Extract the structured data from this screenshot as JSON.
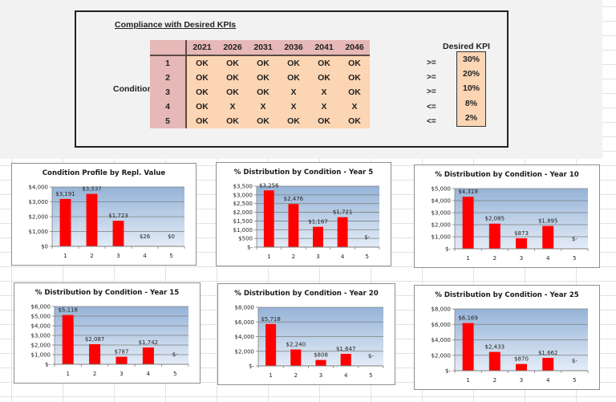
{
  "kpi_panel": {
    "title": "Compliance with Desired KPIs",
    "row_header": "Condition",
    "years": [
      "2021",
      "2026",
      "2031",
      "2036",
      "2041",
      "2046"
    ],
    "rows": [
      {
        "condition": "1",
        "values": [
          "OK",
          "OK",
          "OK",
          "OK",
          "OK",
          "OK"
        ]
      },
      {
        "condition": "2",
        "values": [
          "OK",
          "OK",
          "OK",
          "OK",
          "OK",
          "OK"
        ]
      },
      {
        "condition": "3",
        "values": [
          "OK",
          "OK",
          "OK",
          "X",
          "X",
          "OK"
        ]
      },
      {
        "condition": "4",
        "values": [
          "OK",
          "X",
          "X",
          "X",
          "X",
          "X"
        ]
      },
      {
        "condition": "5",
        "values": [
          "OK",
          "OK",
          "OK",
          "OK",
          "OK",
          "OK"
        ]
      }
    ],
    "desired_kpi": {
      "title": "Desired KPI",
      "items": [
        {
          "operator": ">=",
          "value": "30%"
        },
        {
          "operator": ">=",
          "value": "20%"
        },
        {
          "operator": ">=",
          "value": "10%"
        },
        {
          "operator": "<=",
          "value": "8%"
        },
        {
          "operator": "<=",
          "value": "2%"
        }
      ]
    },
    "colors": {
      "header_fill": "#e6b8b7",
      "cell_fill": "#fcd5b4"
    }
  },
  "chart_data": [
    {
      "type": "bar",
      "title": "Condition Profile by Repl. Value",
      "categories": [
        "1",
        "2",
        "3",
        "4",
        "5"
      ],
      "values": [
        3191,
        3537,
        1723,
        26,
        0
      ],
      "data_labels": [
        "$3,191",
        "$3,537",
        "$1,723",
        "$26",
        "$0"
      ],
      "ylim": [
        0,
        4000
      ],
      "yticks": [
        0,
        1000,
        2000,
        3000,
        4000
      ],
      "ytick_labels": [
        "$0",
        "$1,000",
        "$2,000",
        "$3,000",
        "$4,000"
      ],
      "xlabel": "",
      "ylabel": "",
      "grid": true,
      "legend": "none",
      "bar_color": "#ff0000"
    },
    {
      "type": "bar",
      "title": "% Distribution by Condition - Year 5",
      "categories": [
        "1",
        "2",
        "3",
        "4",
        "5"
      ],
      "values": [
        3256,
        2476,
        1167,
        1721,
        0
      ],
      "data_labels": [
        "$3,256",
        "$2,476",
        "$1,167",
        "$1,721",
        "$-"
      ],
      "ylim": [
        0,
        3500
      ],
      "yticks": [
        0,
        500,
        1000,
        1500,
        2000,
        2500,
        3000,
        3500
      ],
      "ytick_labels": [
        "$-",
        "$500",
        "$1,000",
        "$1,500",
        "$2,000",
        "$2,500",
        "$3,000",
        "$3,500"
      ],
      "xlabel": "",
      "ylabel": "",
      "grid": true,
      "legend": "none",
      "bar_color": "#ff0000"
    },
    {
      "type": "bar",
      "title": "% Distribution by Condition - Year 10",
      "categories": [
        "1",
        "2",
        "3",
        "4",
        "5"
      ],
      "values": [
        4319,
        2085,
        873,
        1895,
        0
      ],
      "data_labels": [
        "$4,319",
        "$2,085",
        "$873",
        "$1,895",
        "$-"
      ],
      "ylim": [
        0,
        5000
      ],
      "yticks": [
        0,
        1000,
        2000,
        3000,
        4000,
        5000
      ],
      "ytick_labels": [
        "$-",
        "$1,000",
        "$2,000",
        "$3,000",
        "$4,000",
        "$5,000"
      ],
      "xlabel": "",
      "ylabel": "",
      "grid": true,
      "legend": "none",
      "bar_color": "#ff0000"
    },
    {
      "type": "bar",
      "title": "% Distribution by Condition - Year 15",
      "categories": [
        "1",
        "2",
        "3",
        "4",
        "5"
      ],
      "values": [
        5118,
        2087,
        787,
        1742,
        0
      ],
      "data_labels": [
        "$5,118",
        "$2,087",
        "$787",
        "$1,742",
        "$-"
      ],
      "ylim": [
        0,
        6000
      ],
      "yticks": [
        0,
        1000,
        2000,
        3000,
        4000,
        5000,
        6000
      ],
      "ytick_labels": [
        "$-",
        "$1,000",
        "$2,000",
        "$3,000",
        "$4,000",
        "$5,000",
        "$6,000"
      ],
      "xlabel": "",
      "ylabel": "",
      "grid": true,
      "legend": "none",
      "bar_color": "#ff0000"
    },
    {
      "type": "bar",
      "title": "% Distribution by Condition - Year 20",
      "categories": [
        "1",
        "2",
        "3",
        "4",
        "5"
      ],
      "values": [
        5718,
        2240,
        808,
        1647,
        0
      ],
      "data_labels": [
        "$5,718",
        "$2,240",
        "$808",
        "$1,647",
        "$-"
      ],
      "ylim": [
        0,
        8000
      ],
      "yticks": [
        0,
        2000,
        4000,
        6000,
        8000
      ],
      "ytick_labels": [
        "$-",
        "$2,000",
        "$4,000",
        "$6,000",
        "$8,000"
      ],
      "xlabel": "",
      "ylabel": "",
      "grid": true,
      "legend": "none",
      "bar_color": "#ff0000"
    },
    {
      "type": "bar",
      "title": "% Distribution by Condition - Year 25",
      "categories": [
        "1",
        "2",
        "3",
        "4",
        "5"
      ],
      "values": [
        6169,
        2433,
        870,
        1662,
        0
      ],
      "data_labels": [
        "$6,169",
        "$2,433",
        "$870",
        "$1,662",
        "$-"
      ],
      "ylim": [
        0,
        8000
      ],
      "yticks": [
        0,
        2000,
        4000,
        6000,
        8000
      ],
      "ytick_labels": [
        "$-",
        "$2,000",
        "$4,000",
        "$6,000",
        "$8,000"
      ],
      "xlabel": "",
      "ylabel": "",
      "grid": true,
      "legend": "none",
      "bar_color": "#ff0000"
    }
  ]
}
